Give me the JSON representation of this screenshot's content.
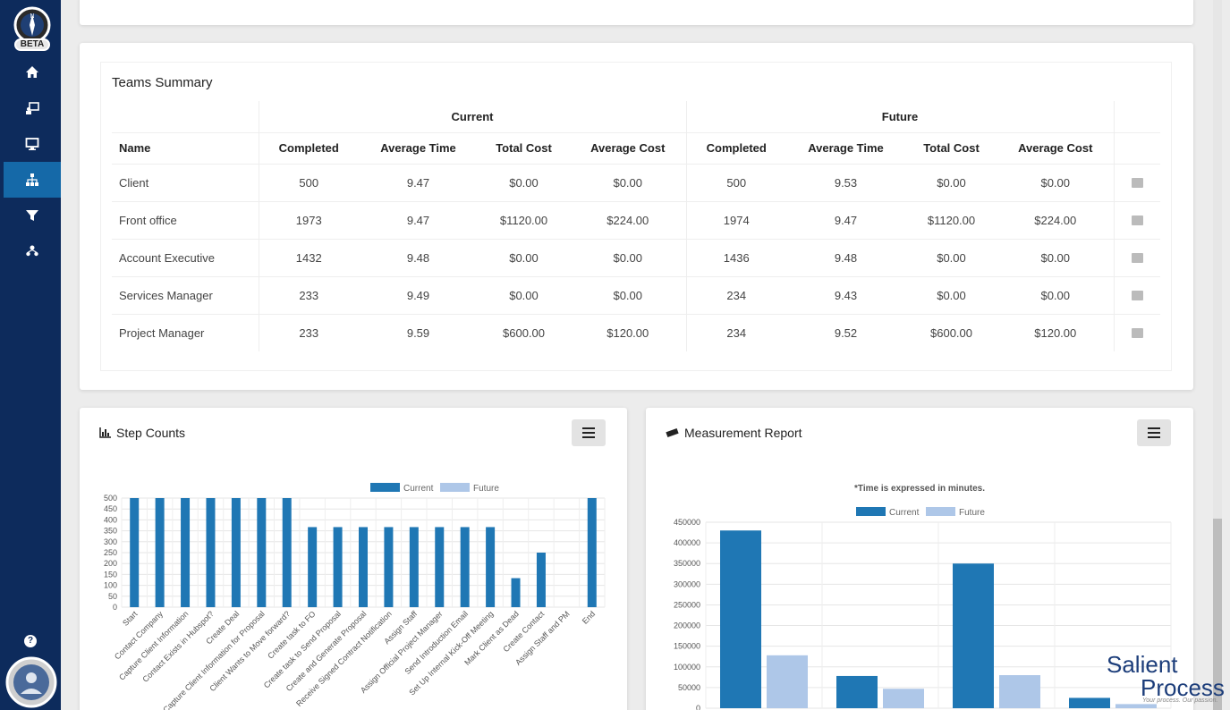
{
  "app": {
    "beta_label": "BETA"
  },
  "sidebar": {
    "items": [
      {
        "name": "home",
        "icon": "home-icon"
      },
      {
        "name": "designer",
        "icon": "person-board-icon"
      },
      {
        "name": "monitor",
        "icon": "monitor-icon"
      },
      {
        "name": "hierarchy",
        "icon": "sitemap-icon",
        "active": true
      },
      {
        "name": "filter",
        "icon": "filter-icon"
      },
      {
        "name": "teams",
        "icon": "users-icon"
      }
    ],
    "help_label": "?"
  },
  "teams_summary": {
    "title": "Teams Summary",
    "group_current": "Current",
    "group_future": "Future",
    "columns": {
      "name": "Name",
      "completed": "Completed",
      "avg_time": "Average Time",
      "total_cost": "Total Cost",
      "avg_cost": "Average Cost"
    },
    "rows": [
      {
        "name": "Client",
        "c_completed": "500",
        "c_avg_time": "9.47",
        "c_total_cost": "$0.00",
        "c_avg_cost": "$0.00",
        "f_completed": "500",
        "f_avg_time": "9.53",
        "f_total_cost": "$0.00",
        "f_avg_cost": "$0.00"
      },
      {
        "name": "Front office",
        "c_completed": "1973",
        "c_avg_time": "9.47",
        "c_total_cost": "$1120.00",
        "c_avg_cost": "$224.00",
        "f_completed": "1974",
        "f_avg_time": "9.47",
        "f_total_cost": "$1120.00",
        "f_avg_cost": "$224.00"
      },
      {
        "name": "Account Executive",
        "c_completed": "1432",
        "c_avg_time": "9.48",
        "c_total_cost": "$0.00",
        "c_avg_cost": "$0.00",
        "f_completed": "1436",
        "f_avg_time": "9.48",
        "f_total_cost": "$0.00",
        "f_avg_cost": "$0.00"
      },
      {
        "name": "Services Manager",
        "c_completed": "233",
        "c_avg_time": "9.49",
        "c_total_cost": "$0.00",
        "c_avg_cost": "$0.00",
        "f_completed": "234",
        "f_avg_time": "9.43",
        "f_total_cost": "$0.00",
        "f_avg_cost": "$0.00"
      },
      {
        "name": "Project Manager",
        "c_completed": "233",
        "c_avg_time": "9.59",
        "c_total_cost": "$600.00",
        "c_avg_cost": "$120.00",
        "f_completed": "234",
        "f_avg_time": "9.52",
        "f_total_cost": "$600.00",
        "f_avg_cost": "$120.00"
      }
    ]
  },
  "step_counts": {
    "title": "Step Counts"
  },
  "measurement_report": {
    "title": "Measurement Report",
    "note": "*Time is expressed in minutes."
  },
  "brand": {
    "line1": "Salient",
    "line2": "Process",
    "tagline": "Your process. Our passion."
  },
  "colors": {
    "current": "#1f77b4",
    "future": "#aec7e8",
    "sidebar": "#0d2b5c",
    "active": "#1569a8"
  },
  "chart_data": [
    {
      "type": "bar",
      "title": "Step Counts",
      "categories": [
        "Start",
        "Contact Company",
        "Capture Client Information",
        "Contact Exists in Hubspot?",
        "Create Deal",
        "Capture Client Information for Proposal",
        "Client Wants to Move forward?",
        "Create task to FO",
        "Create task to Send Proposal",
        "Create and Generate Proposal",
        "Receive Signed Contract Notification",
        "Assign Staff",
        "Assign Official Project Manager",
        "Send Introduction Email",
        "Set Up Internal Kick-Off Meeting",
        "Mark Client as Dead",
        "Create Contact",
        "Assign Staff and PM",
        "End"
      ],
      "series": [
        {
          "name": "Current",
          "values": [
            500,
            500,
            500,
            500,
            500,
            500,
            500,
            367,
            367,
            367,
            367,
            367,
            367,
            367,
            367,
            133,
            250,
            0,
            500
          ]
        },
        {
          "name": "Future",
          "values": [
            0,
            0,
            0,
            0,
            0,
            0,
            0,
            0,
            0,
            0,
            0,
            0,
            0,
            0,
            0,
            0,
            0,
            0,
            0
          ]
        }
      ],
      "yticks": [
        "500",
        "450",
        "400",
        "350",
        "300",
        "250",
        "200",
        "150",
        "100",
        "50",
        "0"
      ],
      "ylim": [
        0,
        500
      ],
      "legend": "top"
    },
    {
      "type": "bar",
      "title": "Measurement Report",
      "subtitle": "*Time is expressed in minutes.",
      "series": [
        {
          "name": "Current",
          "values": [
            430000,
            78000,
            350000,
            25000
          ]
        },
        {
          "name": "Future",
          "values": [
            128000,
            47000,
            80000,
            10000
          ]
        }
      ],
      "yticks": [
        "450000",
        "400000",
        "350000",
        "300000",
        "250000",
        "200000",
        "150000",
        "100000",
        "50000",
        "0"
      ],
      "ylim": [
        0,
        450000
      ],
      "legend": "top"
    }
  ]
}
